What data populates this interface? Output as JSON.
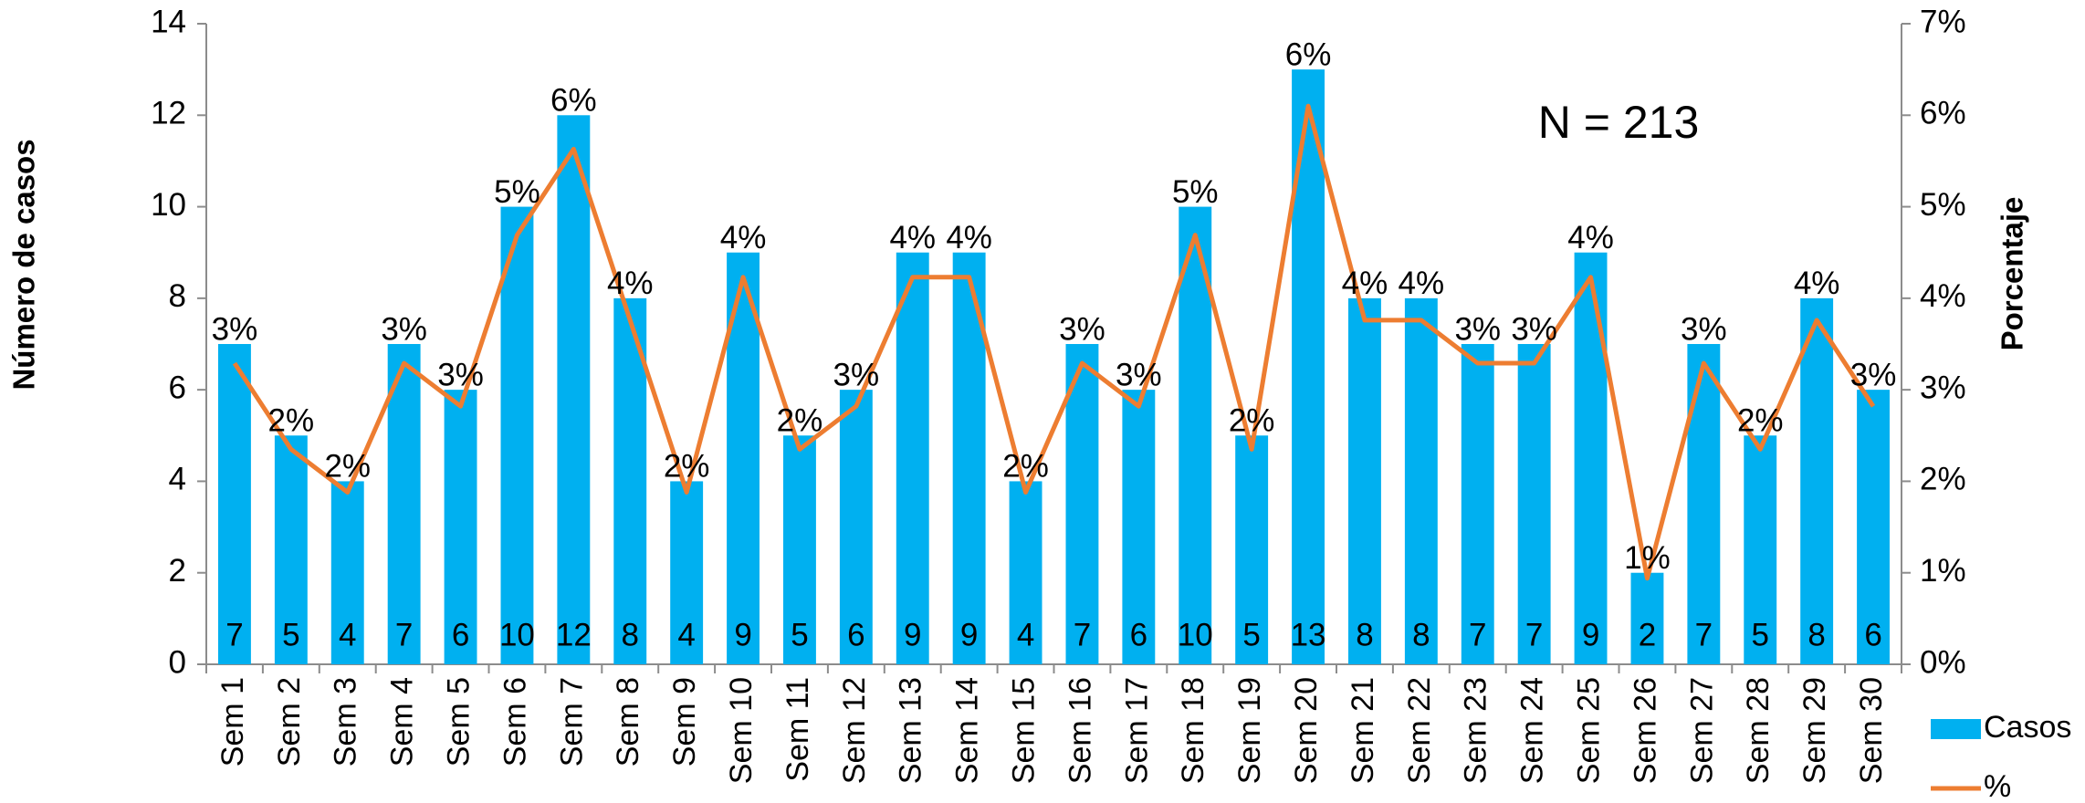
{
  "chart_data": {
    "type": "bar",
    "annotation": "N = 213",
    "y_label": "Número de casos",
    "y2_label": "Porcentaje",
    "categories": [
      "Sem 1",
      "Sem 2",
      "Sem 3",
      "Sem 4",
      "Sem 5",
      "Sem 6",
      "Sem 7",
      "Sem 8",
      "Sem 9",
      "Sem 10",
      "Sem 11",
      "Sem 12",
      "Sem 13",
      "Sem 14",
      "Sem 15",
      "Sem 16",
      "Sem 17",
      "Sem 18",
      "Sem 19",
      "Sem 20",
      "Sem 21",
      "Sem 22",
      "Sem 23",
      "Sem 24",
      "Sem 25",
      "Sem 26",
      "Sem 27",
      "Sem 28",
      "Sem 29",
      "Sem 30"
    ],
    "series": [
      {
        "name": "Casos",
        "type": "bar",
        "color": "#00b0f0",
        "values": [
          7,
          5,
          4,
          7,
          6,
          10,
          12,
          8,
          4,
          9,
          5,
          6,
          9,
          9,
          4,
          7,
          6,
          10,
          5,
          13,
          8,
          8,
          7,
          7,
          9,
          2,
          7,
          5,
          8,
          6
        ]
      },
      {
        "name": "%",
        "type": "line",
        "axis": "y2",
        "color": "#ed7d31",
        "values": [
          3.29,
          2.35,
          1.88,
          3.29,
          2.82,
          4.69,
          5.63,
          3.76,
          1.88,
          4.23,
          2.35,
          2.82,
          4.23,
          4.23,
          1.88,
          3.29,
          2.82,
          4.69,
          2.35,
          6.1,
          3.76,
          3.76,
          3.29,
          3.29,
          4.23,
          0.94,
          3.29,
          2.35,
          3.76,
          2.82
        ],
        "value_labels": [
          "3%",
          "2%",
          "2%",
          "3%",
          "3%",
          "5%",
          "6%",
          "4%",
          "2%",
          "4%",
          "2%",
          "3%",
          "4%",
          "4%",
          "2%",
          "3%",
          "3%",
          "5%",
          "2%",
          "6%",
          "4%",
          "4%",
          "3%",
          "3%",
          "4%",
          "1%",
          "3%",
          "2%",
          "4%",
          "3%"
        ]
      }
    ],
    "ylim": [
      0,
      14
    ],
    "yticks": [
      0,
      2,
      4,
      6,
      8,
      10,
      12,
      14
    ],
    "y2lim": [
      0,
      7
    ],
    "y2ticks": [
      {
        "value": 0,
        "label": "0%"
      },
      {
        "value": 1,
        "label": "1%"
      },
      {
        "value": 2,
        "label": "2%"
      },
      {
        "value": 3,
        "label": "3%"
      },
      {
        "value": 4,
        "label": "4%"
      },
      {
        "value": 5,
        "label": "5%"
      },
      {
        "value": 6,
        "label": "6%"
      },
      {
        "value": 7,
        "label": "7%"
      }
    ],
    "grid": false,
    "legend": "bottom-right"
  }
}
